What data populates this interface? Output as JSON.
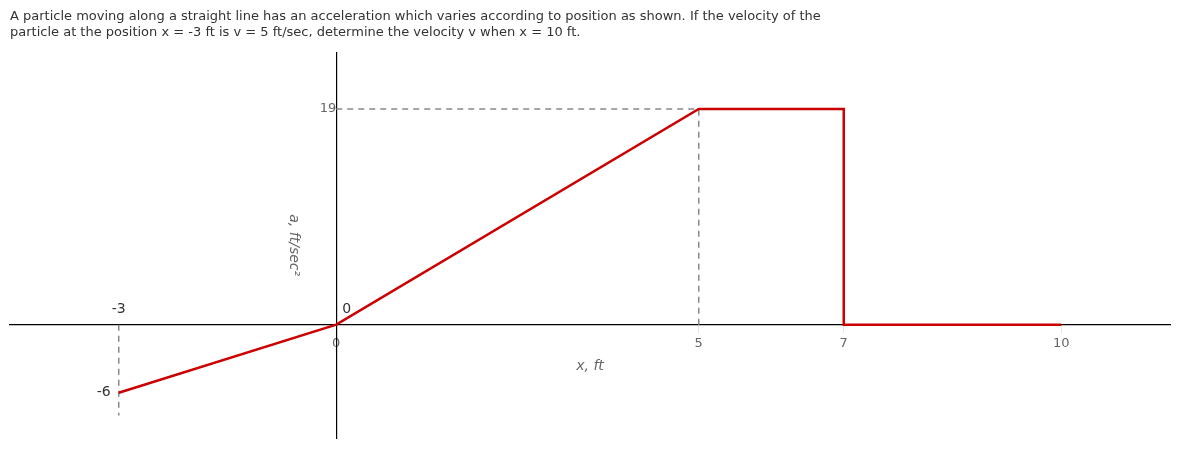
{
  "chart_data": {
    "type": "line",
    "title": "A particle moving along a straight line has an acceleration which varies according to position as shown. If the velocity of the\nparticle at the position x = -3 ft is v = 5 ft/sec, determine the velocity v when x = 10 ft.",
    "xlabel": "x, ft",
    "ylabel": "a, ft/sec²",
    "series": [
      {
        "x": [
          -3,
          0,
          5,
          7,
          7,
          10
        ],
        "values": [
          -6,
          0,
          19,
          19,
          0,
          0
        ],
        "color": "#cc0000",
        "line_style": "solid"
      },
      {
        "x": [
          0,
          5
        ],
        "values": [
          19,
          19
        ],
        "color": "#888888",
        "line_style": "dashed"
      },
      {
        "x": [
          5,
          5
        ],
        "values": [
          0,
          19
        ],
        "color": "#888888",
        "line_style": "dashed"
      },
      {
        "x": [
          7,
          7
        ],
        "values": [
          0,
          19
        ],
        "color": "#888888",
        "line_style": "dashed"
      },
      {
        "x": [
          -3,
          -3
        ],
        "values": [
          0,
          -8
        ],
        "color": "#888888",
        "line_style": "dashed"
      }
    ],
    "annotations": [
      {
        "text": "-3",
        "x": -3,
        "y": 0
      },
      {
        "text": "0",
        "x": 0,
        "y": 0
      },
      {
        "text": "-6",
        "x": -3,
        "y": -6
      }
    ],
    "xlim": [
      -4.5,
      11.5
    ],
    "ylim": [
      -10,
      24
    ],
    "xticks": [
      0,
      5,
      7,
      10
    ],
    "yticks": [
      19
    ],
    "grid": false
  }
}
